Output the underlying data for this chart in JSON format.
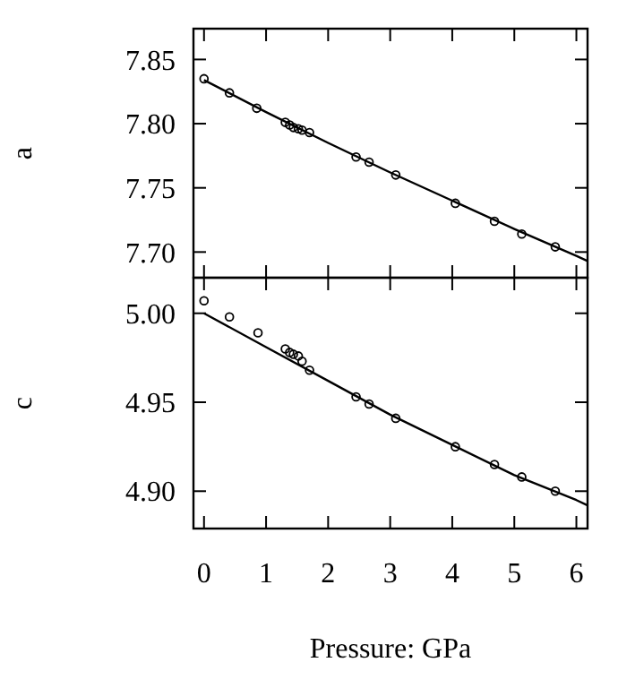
{
  "chart_data": [
    {
      "type": "scatter",
      "ylabel": "a",
      "xlim": [
        -0.17,
        6.18
      ],
      "xticks": [
        0,
        1,
        2,
        3,
        4,
        5,
        6
      ],
      "ylim": [
        7.68,
        7.874
      ],
      "yticks": [
        {
          "value": 7.7,
          "label": "7.70"
        },
        {
          "value": 7.75,
          "label": "7.75"
        },
        {
          "value": 7.8,
          "label": "7.80"
        },
        {
          "value": 7.85,
          "label": "7.85"
        }
      ],
      "tick_labels": "y",
      "grid": false,
      "series": [
        {
          "marker": "circle",
          "color": "#000000",
          "x": [
            0,
            0.41,
            0.85,
            1.31,
            1.38,
            1.44,
            1.52,
            1.58,
            1.7,
            2.45,
            2.66,
            3.09,
            4.05,
            4.68,
            5.12,
            5.66
          ],
          "values": [
            7.835,
            7.824,
            7.812,
            7.801,
            7.799,
            7.797,
            7.796,
            7.795,
            7.793,
            7.774,
            7.77,
            7.76,
            7.738,
            7.724,
            7.714,
            7.704
          ]
        },
        {
          "type": "line",
          "color": "#000000",
          "x": [
            0,
            1,
            2,
            3,
            4,
            5,
            6,
            6.18
          ],
          "values": [
            7.834,
            7.809,
            7.785,
            7.762,
            7.74,
            7.718,
            7.697,
            7.693
          ]
        }
      ]
    },
    {
      "type": "scatter",
      "ylabel": "c",
      "xlabel": "Pressure: GPa",
      "xlim": [
        -0.17,
        6.18
      ],
      "xticks": [
        0,
        1,
        2,
        3,
        4,
        5,
        6
      ],
      "ylim": [
        4.879,
        5.02
      ],
      "yticks": [
        {
          "value": 4.9,
          "label": "4.90"
        },
        {
          "value": 4.95,
          "label": "4.95"
        },
        {
          "value": 5,
          "label": "5.00"
        }
      ],
      "grid": false,
      "series": [
        {
          "marker": "circle",
          "color": "#000000",
          "x": [
            0,
            0.41,
            0.87,
            1.31,
            1.38,
            1.44,
            1.52,
            1.58,
            1.7,
            2.45,
            2.66,
            3.09,
            4.05,
            4.68,
            5.12,
            5.66
          ],
          "values": [
            5.007,
            4.998,
            4.989,
            4.98,
            4.978,
            4.977,
            4.976,
            4.973,
            4.968,
            4.953,
            4.949,
            4.941,
            4.925,
            4.915,
            4.908,
            4.9
          ]
        },
        {
          "type": "line",
          "color": "#000000",
          "x": [
            0,
            1,
            2,
            3,
            4,
            5,
            6,
            6.18
          ],
          "values": [
            5.0,
            4.981,
            4.962,
            4.943,
            4.926,
            4.909,
            4.895,
            4.892
          ]
        }
      ]
    }
  ]
}
